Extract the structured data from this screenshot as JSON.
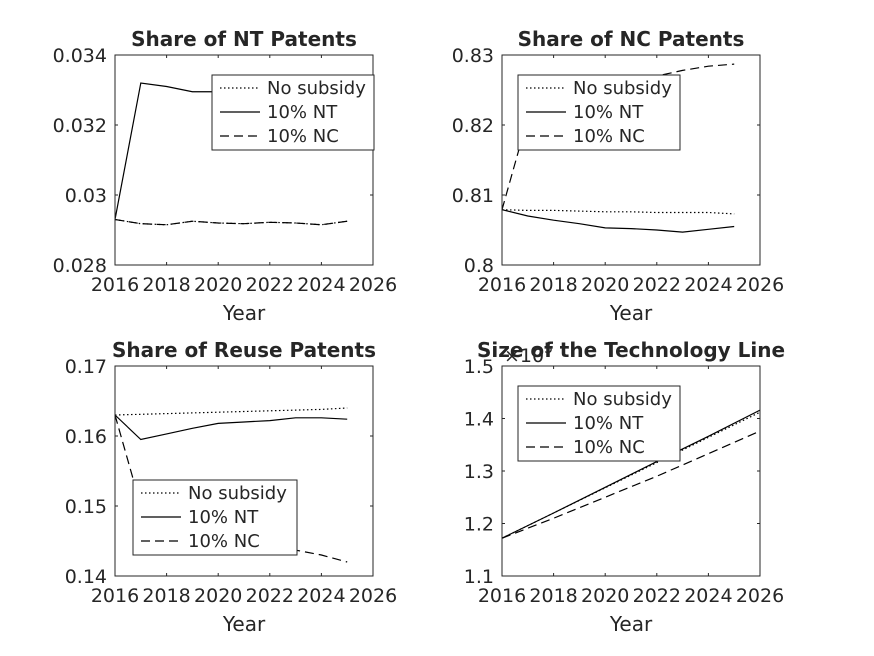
{
  "chart_data": [
    {
      "type": "line",
      "title": "Share of NT Patents",
      "xlabel": "Year",
      "ylabel": "",
      "xlim": [
        2016,
        2026
      ],
      "ylim": [
        0.028,
        0.034
      ],
      "xticks": [
        "2016",
        "2018",
        "2020",
        "2022",
        "2024",
        "2026"
      ],
      "yticks": [
        "0.028",
        "0.03",
        "0.032",
        "0.034"
      ],
      "legend_position": "top-right",
      "x": [
        2016,
        2017,
        2018,
        2019,
        2020,
        2021,
        2022,
        2023,
        2024,
        2025
      ],
      "series": [
        {
          "name": "No subsidy",
          "style": "dotted",
          "values": [
            0.0293,
            0.02918,
            0.02915,
            0.02925,
            0.0292,
            0.02918,
            0.02922,
            0.0292,
            0.02915,
            0.02925
          ]
        },
        {
          "name": "10% NT",
          "style": "solid",
          "values": [
            0.0293,
            0.0332,
            0.0331,
            0.03295,
            0.03295,
            0.03285,
            0.0328,
            0.03275,
            0.0327,
            0.0327
          ]
        },
        {
          "name": "10% NC",
          "style": "dashed",
          "values": [
            0.0293,
            0.02918,
            0.02915,
            0.02925,
            0.0292,
            0.02918,
            0.02922,
            0.0292,
            0.02915,
            0.02925
          ]
        }
      ]
    },
    {
      "type": "line",
      "title": "Share of NC Patents",
      "xlabel": "Year",
      "ylabel": "",
      "xlim": [
        2016,
        2026
      ],
      "ylim": [
        0.8,
        0.83
      ],
      "xticks": [
        "2016",
        "2018",
        "2020",
        "2022",
        "2024",
        "2026"
      ],
      "yticks": [
        "0.8",
        "0.81",
        "0.82",
        "0.83"
      ],
      "legend_position": "top-left",
      "x": [
        2016,
        2017,
        2018,
        2019,
        2020,
        2021,
        2022,
        2023,
        2024,
        2025
      ],
      "series": [
        {
          "name": "No subsidy",
          "style": "dotted",
          "values": [
            0.8079,
            0.8078,
            0.8078,
            0.8077,
            0.8076,
            0.8076,
            0.8075,
            0.8075,
            0.8075,
            0.8073
          ]
        },
        {
          "name": "10% NT",
          "style": "solid",
          "values": [
            0.8079,
            0.807,
            0.8064,
            0.8059,
            0.8053,
            0.8052,
            0.805,
            0.8047,
            0.8051,
            0.8055
          ]
        },
        {
          "name": "10% NC",
          "style": "dashed",
          "values": [
            0.8079,
            0.821,
            0.823,
            0.8245,
            0.8255,
            0.8263,
            0.827,
            0.8278,
            0.8284,
            0.8287
          ]
        }
      ]
    },
    {
      "type": "line",
      "title": "Share of Reuse Patents",
      "xlabel": "Year",
      "ylabel": "",
      "xlim": [
        2016,
        2026
      ],
      "ylim": [
        0.14,
        0.17
      ],
      "xticks": [
        "2016",
        "2018",
        "2020",
        "2022",
        "2024",
        "2026"
      ],
      "yticks": [
        "0.14",
        "0.15",
        "0.16",
        "0.17"
      ],
      "legend_position": "bottom-left",
      "x": [
        2016,
        2017,
        2018,
        2019,
        2020,
        2021,
        2022,
        2023,
        2024,
        2025
      ],
      "series": [
        {
          "name": "No subsidy",
          "style": "dotted",
          "values": [
            0.163,
            0.1631,
            0.1632,
            0.1633,
            0.1634,
            0.1635,
            0.1636,
            0.1637,
            0.1638,
            0.164
          ]
        },
        {
          "name": "10% NT",
          "style": "solid",
          "values": [
            0.163,
            0.1595,
            0.1603,
            0.1611,
            0.1618,
            0.162,
            0.1622,
            0.1626,
            0.1626,
            0.1624
          ]
        },
        {
          "name": "10% NC",
          "style": "dashed",
          "values": [
            0.163,
            0.15,
            0.148,
            0.147,
            0.146,
            0.1452,
            0.1445,
            0.1437,
            0.143,
            0.142
          ]
        }
      ]
    },
    {
      "type": "line",
      "title": "Size of the Technology Line",
      "xlabel": "Year",
      "ylabel": "",
      "y_multiplier": "×10",
      "y_multiplier_exp": "5",
      "xlim": [
        2016,
        2026
      ],
      "ylim": [
        1.1,
        1.5
      ],
      "xticks": [
        "2016",
        "2018",
        "2020",
        "2022",
        "2024",
        "2026"
      ],
      "yticks": [
        "1.1",
        "1.2",
        "1.3",
        "1.4",
        "1.5"
      ],
      "legend_position": "top-left",
      "x": [
        2016,
        2018,
        2020,
        2022,
        2024,
        2026
      ],
      "series": [
        {
          "name": "No subsidy",
          "style": "dotted",
          "values": [
            1.172,
            1.22,
            1.268,
            1.316,
            1.364,
            1.412
          ]
        },
        {
          "name": "10% NT",
          "style": "solid",
          "values": [
            1.172,
            1.22,
            1.269,
            1.318,
            1.366,
            1.416
          ]
        },
        {
          "name": "10% NC",
          "style": "dashed",
          "values": [
            1.172,
            1.21,
            1.25,
            1.29,
            1.333,
            1.376
          ]
        }
      ]
    }
  ]
}
